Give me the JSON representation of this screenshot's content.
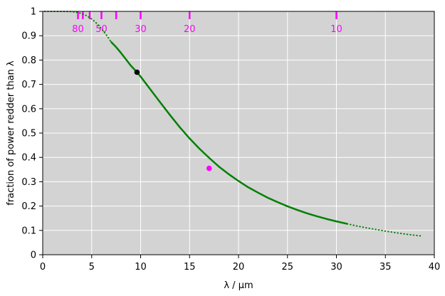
{
  "chart_data": {
    "type": "line",
    "xlabel": "λ / µm",
    "ylabel": "fraction of power redder than λ",
    "xlim": [
      0,
      40
    ],
    "ylim": [
      0,
      1
    ],
    "x_ticks": [
      0,
      5,
      10,
      15,
      20,
      25,
      30,
      35,
      40
    ],
    "y_ticks": [
      0,
      0.1,
      0.2,
      0.3,
      0.4,
      0.5,
      0.6,
      0.7,
      0.8,
      0.9,
      1
    ],
    "grid": true,
    "colors": {
      "background": "#d3d3d3",
      "grid": "#ffffff",
      "curve": "#008000",
      "marker_black": "#000000",
      "marker_magenta": "#ff00ff",
      "temperature_ticks": "#ff00ff"
    },
    "series": [
      {
        "style": "dotted",
        "x": [
          0.2,
          1,
          2,
          3,
          3.5,
          4,
          4.5,
          5,
          5.5,
          6,
          6.5,
          7
        ],
        "y": [
          1.0,
          1.0,
          1.0,
          0.999,
          0.996,
          0.991,
          0.982,
          0.969,
          0.951,
          0.929,
          0.903,
          0.874
        ]
      },
      {
        "style": "solid",
        "x": [
          7,
          7.5,
          8,
          8.5,
          9,
          9.63,
          10,
          11,
          12,
          13,
          14,
          15,
          16,
          17,
          18,
          19,
          20,
          21,
          22,
          23,
          24,
          25,
          26,
          27,
          28,
          29,
          30,
          31.1
        ],
        "y": [
          0.874,
          0.853,
          0.829,
          0.803,
          0.777,
          0.75,
          0.732,
          0.679,
          0.626,
          0.574,
          0.524,
          0.478,
          0.436,
          0.398,
          0.362,
          0.331,
          0.303,
          0.277,
          0.255,
          0.234,
          0.216,
          0.199,
          0.184,
          0.17,
          0.158,
          0.147,
          0.137,
          0.127
        ]
      },
      {
        "style": "dotted",
        "x": [
          31.1,
          32,
          33,
          34,
          35,
          36,
          37,
          38,
          38.7
        ],
        "y": [
          0.127,
          0.119,
          0.111,
          0.104,
          0.097,
          0.091,
          0.085,
          0.08,
          0.077
        ]
      }
    ],
    "points": [
      {
        "x": 9.63,
        "y": 0.75,
        "color": "#000000"
      },
      {
        "x": 17.0,
        "y": 0.355,
        "color": "#ff00ff"
      }
    ],
    "temperature_marks": [
      {
        "x": 3.6,
        "label": ""
      },
      {
        "x": 4.1,
        "label": ""
      },
      {
        "x": 4.8,
        "label": ""
      },
      {
        "x": 6.0,
        "label": ""
      },
      {
        "x": 7.5,
        "label": ""
      },
      {
        "x": 10.0,
        "label": ""
      },
      {
        "x": 15.0,
        "label": ""
      },
      {
        "x": 30.0,
        "label": ""
      }
    ],
    "temperature_labels": [
      {
        "x": 3.6,
        "text": "80"
      },
      {
        "x": 6.0,
        "text": "50"
      },
      {
        "x": 10.0,
        "text": "30"
      },
      {
        "x": 15.0,
        "text": "20"
      },
      {
        "x": 30.0,
        "text": "10"
      }
    ]
  }
}
